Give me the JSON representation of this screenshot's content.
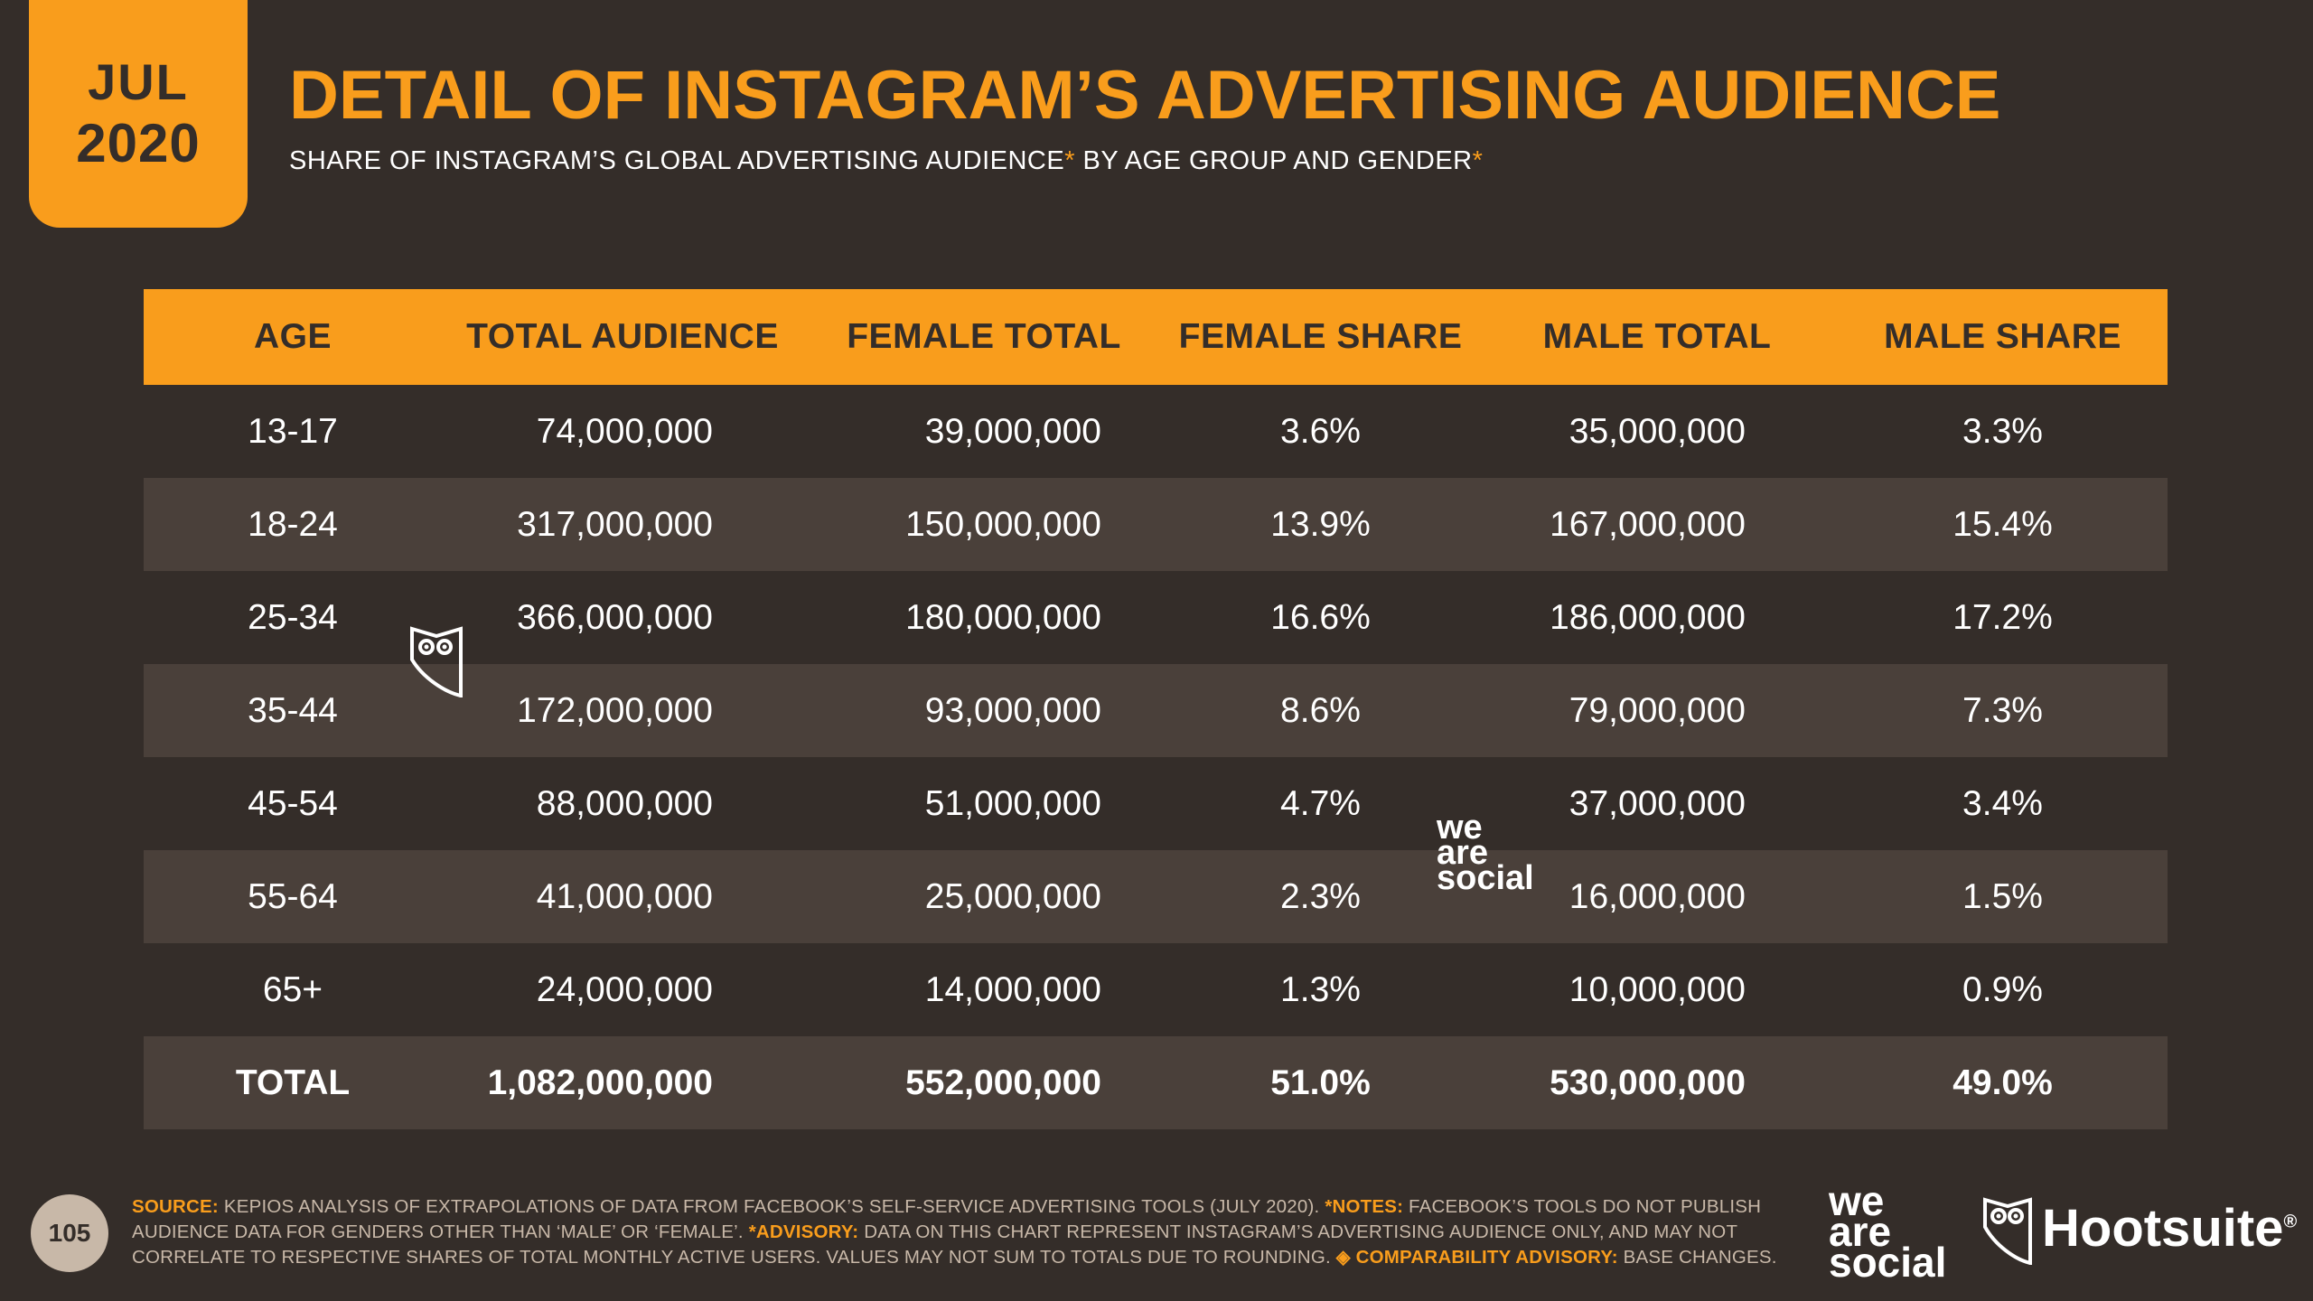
{
  "badge": {
    "month": "JUL",
    "year": "2020"
  },
  "header": {
    "title": "DETAIL OF INSTAGRAM’S ADVERTISING AUDIENCE",
    "subtitle_part1": "SHARE OF INSTAGRAM’S GLOBAL ADVERTISING AUDIENCE",
    "subtitle_ast1": "*",
    "subtitle_part2": " BY AGE GROUP AND GENDER",
    "subtitle_ast2": "*"
  },
  "chart_data": {
    "type": "table",
    "columns": [
      "AGE",
      "TOTAL AUDIENCE",
      "FEMALE TOTAL",
      "FEMALE SHARE",
      "MALE TOTAL",
      "MALE SHARE"
    ],
    "rows": [
      [
        "13-17",
        "74,000,000",
        "39,000,000",
        "3.6%",
        "35,000,000",
        "3.3%"
      ],
      [
        "18-24",
        "317,000,000",
        "150,000,000",
        "13.9%",
        "167,000,000",
        "15.4%"
      ],
      [
        "25-34",
        "366,000,000",
        "180,000,000",
        "16.6%",
        "186,000,000",
        "17.2%"
      ],
      [
        "35-44",
        "172,000,000",
        "93,000,000",
        "8.6%",
        "79,000,000",
        "7.3%"
      ],
      [
        "45-54",
        "88,000,000",
        "51,000,000",
        "4.7%",
        "37,000,000",
        "3.4%"
      ],
      [
        "55-64",
        "41,000,000",
        "25,000,000",
        "2.3%",
        "16,000,000",
        "1.5%"
      ],
      [
        "65+",
        "24,000,000",
        "14,000,000",
        "1.3%",
        "10,000,000",
        "0.9%"
      ]
    ],
    "total_row": [
      "TOTAL",
      "1,082,000,000",
      "552,000,000",
      "51.0%",
      "530,000,000",
      "49.0%"
    ]
  },
  "watermarks": {
    "we_are_social": [
      "we",
      "are",
      "social"
    ]
  },
  "footer": {
    "page_number": "105",
    "source_label": "SOURCE:",
    "source_text": " KEPIOS ANALYSIS OF EXTRAPOLATIONS OF DATA FROM FACEBOOK’S SELF-SERVICE ADVERTISING TOOLS (JULY 2020). ",
    "notes_label": "*NOTES:",
    "notes_text": " FACEBOOK’S TOOLS DO NOT PUBLISH AUDIENCE DATA FOR GENDERS OTHER THAN ‘MALE’ OR ‘FEMALE’. ",
    "advisory_label": "*ADVISORY:",
    "advisory_text": " DATA ON THIS CHART REPRESENT INSTAGRAM’S ADVERTISING AUDIENCE ONLY, AND MAY NOT CORRELATE TO RESPECTIVE SHARES OF TOTAL MONTHLY ACTIVE USERS. VALUES MAY NOT SUM TO TOTALS DUE TO ROUNDING. ",
    "comparability_label": "◈ COMPARABILITY ADVISORY:",
    "comparability_text": " BASE CHANGES.",
    "logo_was": [
      "we",
      "are",
      "social"
    ],
    "logo_hootsuite": "Hootsuite",
    "logo_hootsuite_mark": "®"
  },
  "colors": {
    "accent": "#f99d1c",
    "background": "#342d29",
    "row_alt": "#4a403a",
    "muted": "#c8b8a8"
  },
  "icons": [
    "owl-icon",
    "hootsuite-owl-icon"
  ]
}
